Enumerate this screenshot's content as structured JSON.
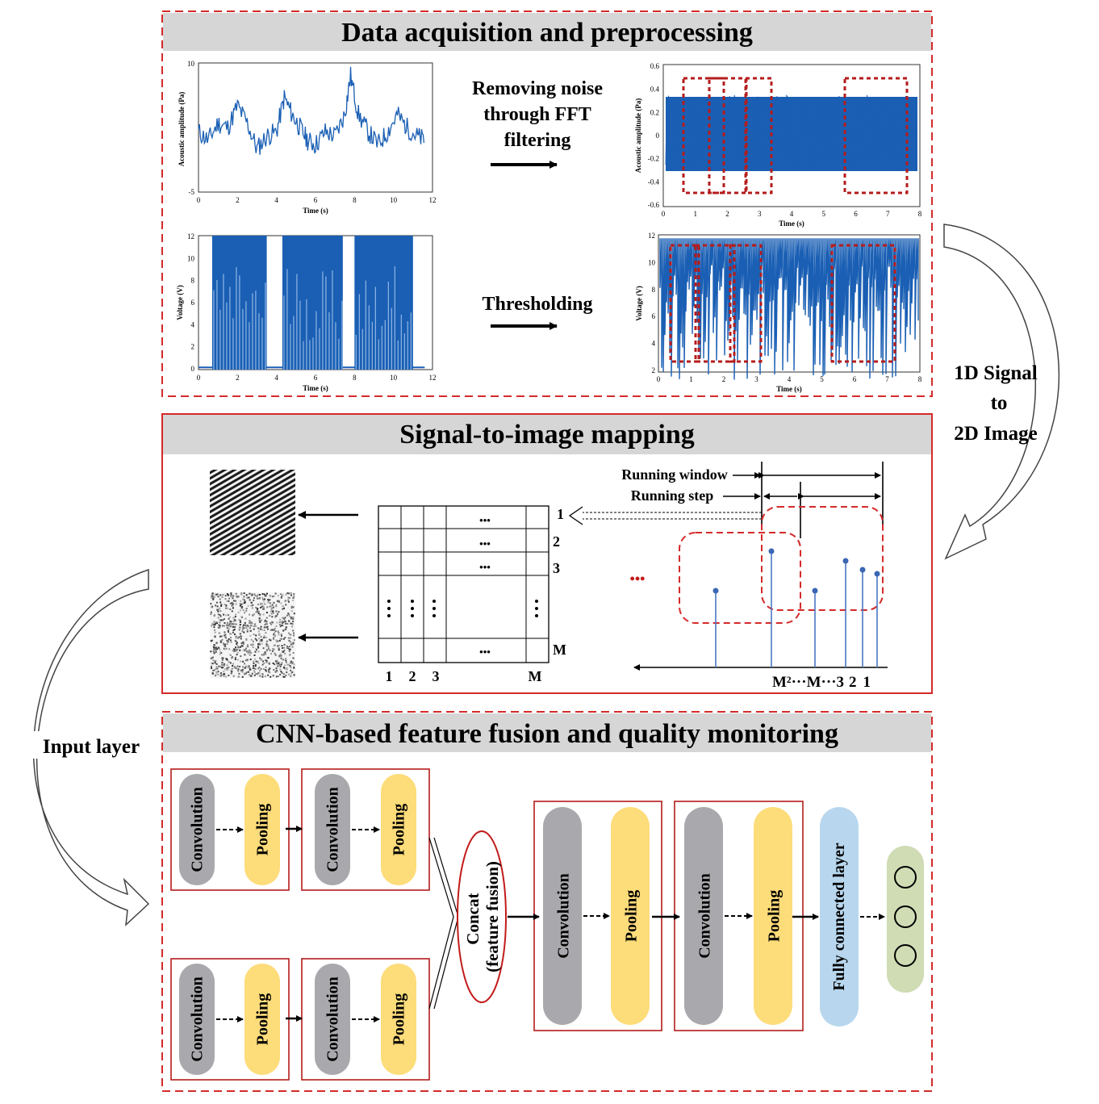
{
  "sections": {
    "top_title": "Data acquisition and preprocessing",
    "mid_title": "Signal-to-image mapping",
    "bot_title": "CNN-based feature fusion and quality monitoring"
  },
  "arrows": {
    "fft_label_lines": [
      "Removing noise",
      "through FFT",
      "filtering"
    ],
    "threshold_label": "Thresholding",
    "conversion_lines": [
      "1D Signal",
      "to",
      "2D Image"
    ],
    "input_layer": "Input layer"
  },
  "mapping": {
    "running_window": "Running window",
    "running_step": "Running step",
    "row_labels": [
      "1",
      "2",
      "3",
      "M"
    ],
    "col_labels": [
      "1",
      "2",
      "3",
      "M"
    ],
    "dots": "•••",
    "sample_label_parts": [
      "M²",
      "···",
      "M",
      "···",
      "3",
      "2",
      "1"
    ]
  },
  "cnn": {
    "conv": "Convolution",
    "pool": "Pooling",
    "concat_lines": [
      "Concat",
      "(feature fusion)"
    ],
    "fc": "Fully connected layer"
  },
  "colors": {
    "red_dashed": "#d42a2a",
    "header_gray": "#d6d6d6",
    "signal_blue": "#1a5fb4",
    "conv_gray": "#a9a9ad",
    "pool_yellow": "#fddc7a",
    "fc_blue": "#b8d7ee",
    "output_green": "#cfdcb4"
  },
  "chart_data": [
    {
      "type": "line",
      "panel": "raw acoustic signal",
      "xlabel": "Time (s)",
      "ylabel": "Acoustic amplitude (Pa)",
      "xlim": [
        0,
        12
      ],
      "ylim": [
        -5,
        10
      ],
      "x_ticks": [
        "0",
        "2",
        "4",
        "6",
        "8",
        "10",
        "12"
      ],
      "y_ticks": [
        "10",
        "-5"
      ],
      "x": [
        0,
        0.5,
        1,
        1.5,
        2,
        2.5,
        3,
        3.5,
        4,
        4.4,
        4.8,
        5.2,
        5.6,
        6,
        6.5,
        7,
        7.5,
        7.8,
        8.2,
        8.7,
        9.2,
        9.7,
        10.2,
        10.7,
        11.2,
        11.6
      ],
      "y": [
        2,
        1,
        3,
        2.5,
        5,
        3,
        0,
        1.5,
        2,
        6,
        4,
        2.5,
        1,
        0.5,
        2,
        1.5,
        4,
        8.5,
        4,
        2,
        0.5,
        2,
        4,
        2.5,
        1.5,
        1
      ]
    },
    {
      "type": "line",
      "panel": "filtered acoustic signal",
      "xlabel": "Time (s)",
      "ylabel": "Acoustic amplitude (Pa)",
      "xlim": [
        0,
        8
      ],
      "ylim": [
        -0.6,
        0.6
      ],
      "x_ticks": [
        "0",
        "1",
        "2",
        "3",
        "4",
        "5",
        "6",
        "7",
        "8"
      ],
      "y_ticks": [
        "0.6",
        "0.4",
        "0.2",
        "0",
        "-0.2",
        "-0.4",
        "-0.6"
      ],
      "envelope_upper": 0.35,
      "envelope_lower": -0.3
    },
    {
      "type": "line",
      "panel": "raw voltage signal",
      "xlabel": "Time (s)",
      "ylabel": "Voltage (V)",
      "xlim": [
        0,
        12
      ],
      "ylim": [
        0,
        12
      ],
      "x_ticks": [
        "0",
        "2",
        "4",
        "6",
        "8",
        "10",
        "12"
      ],
      "y_ticks": [
        "12",
        "10",
        "8",
        "6",
        "4",
        "2",
        "0"
      ],
      "active_intervals": [
        [
          0.7,
          3.5
        ],
        [
          4.3,
          7.4
        ],
        [
          8.0,
          11.0
        ]
      ],
      "active_level": 12,
      "idle_level": 0.2
    },
    {
      "type": "line",
      "panel": "thresholded voltage signal",
      "xlabel": "Time (s)",
      "ylabel": "Voltage (V)",
      "xlim": [
        0,
        8
      ],
      "ylim": [
        2,
        12
      ],
      "x_ticks": [
        "0",
        "1",
        "2",
        "3",
        "4",
        "5",
        "6",
        "7",
        "8"
      ],
      "y_ticks": [
        "12",
        "10",
        "8",
        "6",
        "4",
        "2"
      ],
      "upper_level": 11.8
    }
  ]
}
